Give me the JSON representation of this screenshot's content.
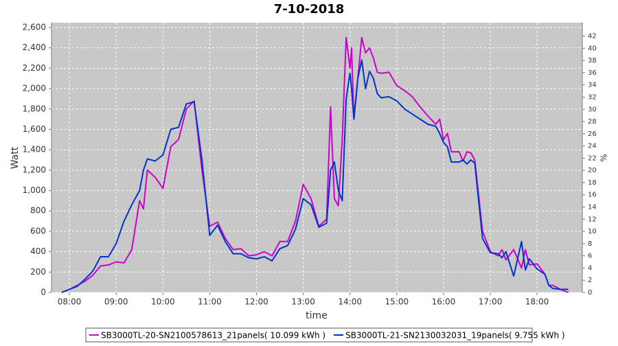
{
  "chart_data": {
    "type": "line",
    "title": "7-10-2018",
    "x_label": "time",
    "y_label": "Watt",
    "y2_label": "%",
    "x": [
      "07:50",
      "08:00",
      "08:10",
      "08:20",
      "08:30",
      "08:40",
      "08:50",
      "09:00",
      "09:10",
      "09:20",
      "09:30",
      "09:35",
      "09:40",
      "09:50",
      "10:00",
      "10:10",
      "10:20",
      "10:30",
      "10:40",
      "10:50",
      "11:00",
      "11:10",
      "11:20",
      "11:30",
      "11:40",
      "11:50",
      "12:00",
      "12:10",
      "12:20",
      "12:30",
      "12:40",
      "12:50",
      "13:00",
      "13:10",
      "13:20",
      "13:30",
      "13:35",
      "13:40",
      "13:45",
      "13:50",
      "13:55",
      "14:00",
      "14:02",
      "14:05",
      "14:10",
      "14:15",
      "14:20",
      "14:25",
      "14:30",
      "14:35",
      "14:40",
      "14:50",
      "15:00",
      "15:10",
      "15:20",
      "15:30",
      "15:40",
      "15:50",
      "15:55",
      "16:00",
      "16:05",
      "16:10",
      "16:20",
      "16:25",
      "16:30",
      "16:35",
      "16:40",
      "16:50",
      "17:00",
      "17:10",
      "17:15",
      "17:20",
      "17:30",
      "17:40",
      "17:45",
      "17:50",
      "18:00",
      "18:10",
      "18:15",
      "18:20",
      "18:30",
      "18:40"
    ],
    "series": [
      {
        "name": "SB3000TL-20-SN2100578613_21panels( 10.099 kWh )",
        "color": "#cc00cc",
        "values": [
          0,
          30,
          70,
          110,
          170,
          260,
          270,
          300,
          290,
          420,
          900,
          820,
          1200,
          1130,
          1020,
          1430,
          1500,
          1800,
          1880,
          1200,
          650,
          690,
          530,
          420,
          430,
          360,
          370,
          400,
          360,
          500,
          500,
          700,
          1060,
          920,
          650,
          720,
          1820,
          920,
          850,
          1500,
          2500,
          2200,
          2400,
          1700,
          2100,
          2500,
          2350,
          2400,
          2300,
          2160,
          2150,
          2160,
          2030,
          1980,
          1920,
          1820,
          1730,
          1650,
          1700,
          1500,
          1560,
          1380,
          1380,
          1290,
          1380,
          1370,
          1300,
          600,
          400,
          360,
          420,
          320,
          420,
          240,
          420,
          270,
          280,
          180,
          70,
          70,
          30,
          0
        ]
      },
      {
        "name": "SB3000TL-21-SN2130032031_19panels( 9.755 kWh )",
        "color": "#0033cc",
        "values": [
          0,
          30,
          60,
          130,
          210,
          350,
          350,
          480,
          700,
          860,
          1000,
          1200,
          1310,
          1290,
          1350,
          1600,
          1620,
          1850,
          1870,
          1300,
          560,
          660,
          500,
          380,
          380,
          340,
          330,
          350,
          310,
          430,
          460,
          620,
          920,
          860,
          640,
          680,
          1200,
          1280,
          1000,
          900,
          1900,
          2150,
          2000,
          1700,
          2100,
          2280,
          2000,
          2170,
          2100,
          1950,
          1910,
          1920,
          1880,
          1800,
          1750,
          1700,
          1650,
          1630,
          1560,
          1470,
          1430,
          1280,
          1280,
          1300,
          1260,
          1300,
          1270,
          530,
          390,
          380,
          340,
          400,
          160,
          500,
          220,
          330,
          230,
          180,
          70,
          40,
          30,
          30
        ]
      }
    ],
    "xlim": [
      "07:37",
      "18:58"
    ],
    "xticks": [
      "08:00",
      "09:00",
      "10:00",
      "11:00",
      "12:00",
      "13:00",
      "14:00",
      "15:00",
      "16:00",
      "17:00",
      "18:00"
    ],
    "ylim": [
      0,
      2647
    ],
    "yticks": [
      0,
      200,
      400,
      600,
      800,
      {
        "value": 1000,
        "label": "1,000"
      },
      {
        "value": 1200,
        "label": "1,200"
      },
      {
        "value": 1400,
        "label": "1,400"
      },
      {
        "value": 1600,
        "label": "1,600"
      },
      {
        "value": 1800,
        "label": "1,800"
      },
      {
        "value": 2000,
        "label": "2,000"
      },
      {
        "value": 2200,
        "label": "2,200"
      },
      {
        "value": 2400,
        "label": "2,400"
      },
      {
        "value": 2600,
        "label": "2,600"
      }
    ],
    "y2lim": [
      0,
      44.2
    ],
    "y2ticks": [
      0,
      2,
      4,
      6,
      8,
      10,
      12,
      14,
      16,
      18,
      20,
      22,
      24,
      26,
      28,
      30,
      32,
      34,
      36,
      38,
      40,
      42
    ],
    "grid": true,
    "legend": "bottom"
  }
}
